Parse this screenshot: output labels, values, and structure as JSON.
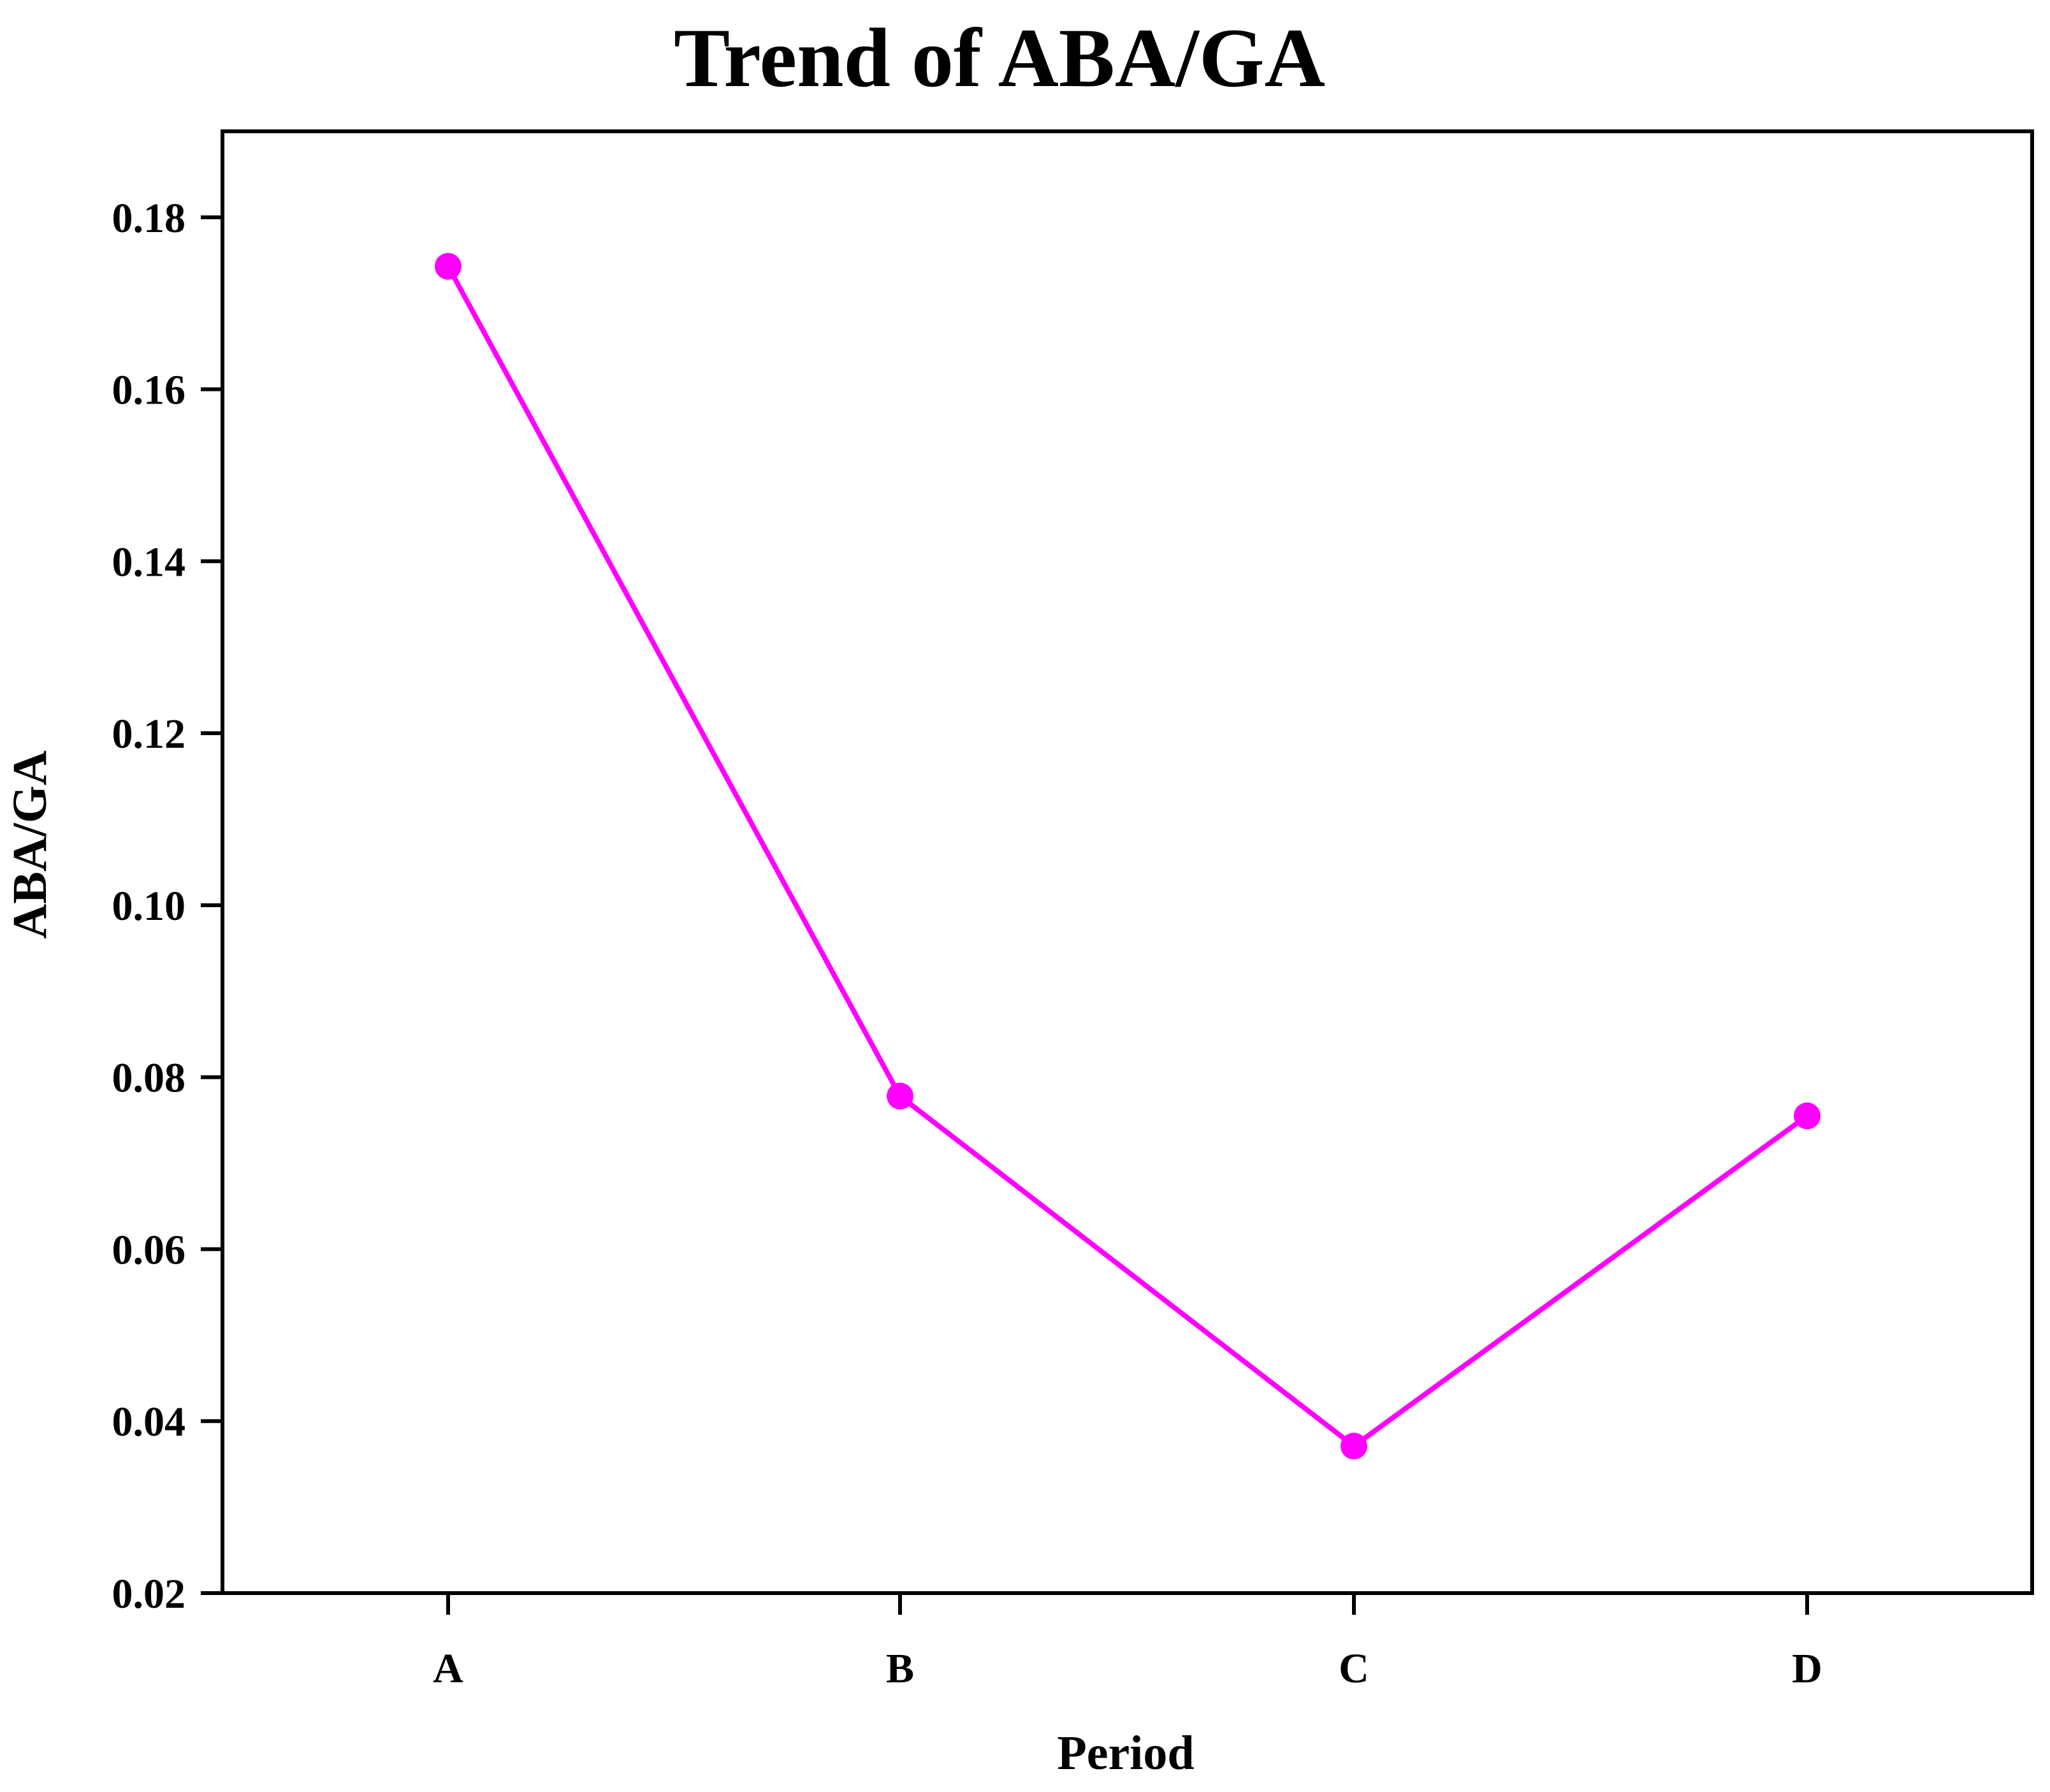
{
  "chart_data": {
    "type": "line",
    "title": "Trend of ABA/GA",
    "xlabel": "Period",
    "ylabel": "ABA/GA",
    "categories": [
      "A",
      "B",
      "C",
      "D"
    ],
    "series": [
      {
        "values": [
          0.1743,
          0.0778,
          0.0371,
          0.0755
        ],
        "color": "#ff00ff"
      }
    ],
    "ylim": [
      0.02,
      0.19
    ],
    "yticks": [
      0.02,
      0.04,
      0.06,
      0.08,
      0.1,
      0.12,
      0.14,
      0.16,
      0.18
    ],
    "ytick_labels": [
      "0.02",
      "0.04",
      "0.06",
      "0.08",
      "0.10",
      "0.12",
      "0.14",
      "0.16",
      "0.18"
    ],
    "grid": false,
    "legend": "none",
    "marker": "circle"
  }
}
